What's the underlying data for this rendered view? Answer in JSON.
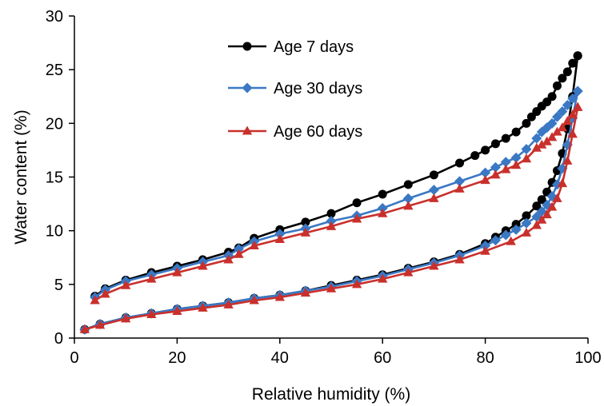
{
  "chart_data": {
    "type": "line",
    "xlabel": "Relative humidity (%)",
    "ylabel": "Water content (%)",
    "xlim": [
      0,
      100
    ],
    "ylim": [
      0,
      30
    ],
    "x_ticks": [
      "0",
      "20",
      "40",
      "60",
      "80",
      "100"
    ],
    "y_ticks": [
      "0",
      "5",
      "10",
      "15",
      "20",
      "25",
      "30"
    ],
    "grid": false,
    "legend_position": "top-left",
    "series": [
      {
        "name": "Age 7 days",
        "color": "#000000",
        "marker": "circle",
        "x": [
          2,
          5,
          10,
          15,
          20,
          25,
          30,
          35,
          40,
          45,
          50,
          55,
          60,
          65,
          70,
          75,
          80,
          82,
          84,
          86,
          88,
          90,
          91,
          92,
          93,
          94,
          95,
          96,
          97,
          98,
          98,
          97,
          96,
          95,
          94,
          93,
          92,
          91,
          90,
          89,
          88,
          86,
          84,
          82,
          80,
          78,
          75,
          70,
          65,
          60,
          55,
          50,
          45,
          40,
          35,
          32,
          30,
          25,
          20,
          15,
          10,
          6,
          4
        ],
        "y": [
          0.8,
          1.3,
          1.9,
          2.3,
          2.7,
          3.0,
          3.3,
          3.7,
          4.0,
          4.4,
          4.9,
          5.4,
          5.9,
          6.5,
          7.1,
          7.8,
          8.8,
          9.4,
          10.0,
          10.6,
          11.4,
          12.3,
          12.9,
          13.6,
          14.5,
          15.6,
          17.2,
          19.5,
          22.5,
          26.3,
          26.3,
          25.6,
          24.8,
          24.2,
          23.5,
          22.5,
          22.0,
          21.6,
          21.1,
          20.6,
          20.0,
          19.2,
          18.6,
          18.1,
          17.5,
          17.0,
          16.3,
          15.2,
          14.3,
          13.4,
          12.6,
          11.6,
          10.8,
          10.1,
          9.3,
          8.4,
          8.0,
          7.3,
          6.7,
          6.1,
          5.4,
          4.6,
          3.9
        ]
      },
      {
        "name": "Age 30 days",
        "color": "#3a78c4",
        "marker": "diamond",
        "x": [
          2,
          5,
          10,
          15,
          20,
          25,
          30,
          35,
          40,
          45,
          50,
          55,
          60,
          65,
          70,
          75,
          80,
          82,
          84,
          86,
          88,
          90,
          91,
          92,
          93,
          94,
          95,
          96,
          97,
          98,
          98,
          97,
          96,
          95,
          94,
          93,
          92,
          91,
          90,
          88,
          86,
          84,
          82,
          80,
          75,
          70,
          65,
          60,
          55,
          50,
          45,
          40,
          35,
          32,
          30,
          25,
          20,
          15,
          10,
          6,
          4
        ],
        "y": [
          0.8,
          1.3,
          1.9,
          2.3,
          2.7,
          3.0,
          3.3,
          3.7,
          4.0,
          4.4,
          4.8,
          5.3,
          5.8,
          6.4,
          7.0,
          7.7,
          8.6,
          9.1,
          9.6,
          10.1,
          10.7,
          11.3,
          11.8,
          12.4,
          13.2,
          14.3,
          15.8,
          18.0,
          20.5,
          23.0,
          23.0,
          22.3,
          21.7,
          21.1,
          20.6,
          20.0,
          19.6,
          19.2,
          18.6,
          17.6,
          16.8,
          16.4,
          15.9,
          15.4,
          14.6,
          13.8,
          13.0,
          12.1,
          11.4,
          10.9,
          10.2,
          9.7,
          9.0,
          8.3,
          7.7,
          7.1,
          6.5,
          5.9,
          5.3,
          4.5,
          3.8
        ]
      },
      {
        "name": "Age 60 days",
        "color": "#c9302c",
        "marker": "triangle",
        "x": [
          2,
          5,
          10,
          15,
          20,
          25,
          30,
          35,
          40,
          45,
          50,
          55,
          60,
          65,
          70,
          75,
          80,
          85,
          88,
          90,
          91,
          92,
          93,
          94,
          95,
          96,
          97,
          98,
          98,
          97,
          96,
          95,
          94,
          93,
          92,
          91,
          90,
          88,
          86,
          84,
          82,
          80,
          75,
          70,
          65,
          60,
          55,
          50,
          45,
          40,
          35,
          32,
          30,
          25,
          20,
          15,
          10,
          6,
          4
        ],
        "y": [
          0.8,
          1.2,
          1.8,
          2.2,
          2.5,
          2.8,
          3.1,
          3.5,
          3.8,
          4.2,
          4.6,
          5.0,
          5.5,
          6.1,
          6.7,
          7.3,
          8.1,
          9.0,
          9.8,
          10.5,
          11.0,
          11.5,
          12.2,
          13.0,
          14.4,
          16.5,
          19.0,
          21.5,
          21.5,
          20.8,
          20.2,
          19.6,
          19.2,
          18.7,
          18.3,
          18.0,
          17.7,
          16.7,
          16.1,
          15.7,
          15.2,
          14.7,
          13.9,
          13.0,
          12.3,
          11.6,
          11.1,
          10.4,
          9.8,
          9.2,
          8.6,
          7.8,
          7.3,
          6.7,
          6.1,
          5.5,
          4.9,
          4.1,
          3.5
        ]
      }
    ]
  }
}
